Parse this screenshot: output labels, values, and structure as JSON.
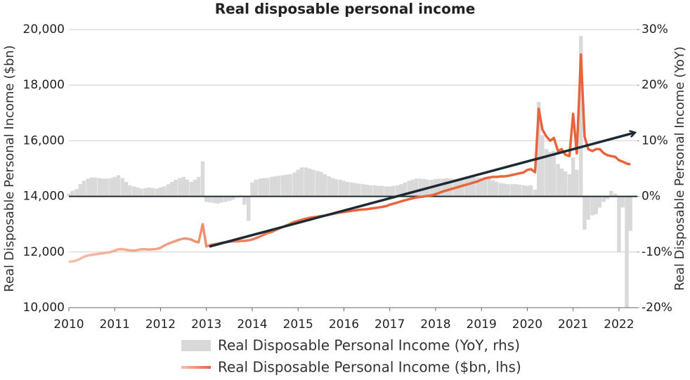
{
  "chart_data": {
    "type": "combo",
    "title": "Real disposable personal income",
    "y_label": "Real Disposable Personal Income ($bn)",
    "y2_label": "Real Disposable Personal Income (YoY)",
    "x": [
      2010.0,
      2010.08,
      2010.17,
      2010.25,
      2010.33,
      2010.42,
      2010.5,
      2010.58,
      2010.67,
      2010.75,
      2010.83,
      2010.92,
      2011.0,
      2011.08,
      2011.17,
      2011.25,
      2011.33,
      2011.42,
      2011.5,
      2011.58,
      2011.67,
      2011.75,
      2011.83,
      2011.92,
      2012.0,
      2012.08,
      2012.17,
      2012.25,
      2012.33,
      2012.42,
      2012.5,
      2012.58,
      2012.67,
      2012.75,
      2012.83,
      2012.92,
      2013.0,
      2013.08,
      2013.17,
      2013.25,
      2013.33,
      2013.42,
      2013.5,
      2013.58,
      2013.67,
      2013.75,
      2013.83,
      2013.92,
      2014.0,
      2014.08,
      2014.17,
      2014.25,
      2014.33,
      2014.42,
      2014.5,
      2014.58,
      2014.67,
      2014.75,
      2014.83,
      2014.92,
      2015.0,
      2015.08,
      2015.17,
      2015.25,
      2015.33,
      2015.42,
      2015.5,
      2015.58,
      2015.67,
      2015.75,
      2015.83,
      2015.92,
      2016.0,
      2016.08,
      2016.17,
      2016.25,
      2016.33,
      2016.42,
      2016.5,
      2016.58,
      2016.67,
      2016.75,
      2016.83,
      2016.92,
      2017.0,
      2017.08,
      2017.17,
      2017.25,
      2017.33,
      2017.42,
      2017.5,
      2017.58,
      2017.67,
      2017.75,
      2017.83,
      2017.92,
      2018.0,
      2018.08,
      2018.17,
      2018.25,
      2018.33,
      2018.42,
      2018.5,
      2018.58,
      2018.67,
      2018.75,
      2018.83,
      2018.92,
      2019.0,
      2019.08,
      2019.17,
      2019.25,
      2019.33,
      2019.42,
      2019.5,
      2019.58,
      2019.67,
      2019.75,
      2019.83,
      2019.92,
      2020.0,
      2020.08,
      2020.17,
      2020.25,
      2020.33,
      2020.42,
      2020.5,
      2020.58,
      2020.67,
      2020.75,
      2020.83,
      2020.92,
      2021.0,
      2021.08,
      2021.17,
      2021.25,
      2021.33,
      2021.42,
      2021.5,
      2021.58,
      2021.67,
      2021.75,
      2021.83,
      2021.92,
      2022.0,
      2022.08,
      2022.17,
      2022.25
    ],
    "series": [
      {
        "name": "Real Disposable Personal Income (YoY, rhs)",
        "type": "bar",
        "axis": "y2",
        "color": "#d9d9d9",
        "values": [
          0.5,
          1.0,
          1.3,
          2.2,
          2.8,
          3.2,
          3.4,
          3.4,
          3.3,
          3.2,
          3.2,
          3.3,
          3.5,
          3.8,
          3.3,
          2.6,
          2.0,
          1.8,
          1.6,
          1.4,
          1.5,
          1.6,
          1.5,
          1.4,
          1.6,
          1.8,
          2.2,
          2.6,
          3.0,
          3.3,
          3.5,
          3.0,
          2.6,
          3.0,
          3.5,
          6.3,
          -1.0,
          -1.1,
          -1.2,
          -1.3,
          -1.1,
          -1.0,
          -0.8,
          -0.6,
          -0.2,
          0.2,
          -1.5,
          -4.4,
          2.5,
          3.0,
          3.2,
          3.3,
          3.3,
          3.5,
          3.6,
          3.7,
          3.8,
          3.9,
          4.0,
          4.3,
          4.8,
          5.2,
          5.2,
          5.0,
          4.8,
          4.6,
          4.4,
          4.0,
          3.6,
          3.3,
          3.1,
          3.0,
          2.8,
          2.6,
          2.5,
          2.4,
          2.3,
          2.2,
          2.1,
          2.0,
          2.0,
          1.9,
          1.9,
          1.8,
          1.8,
          1.9,
          2.0,
          2.2,
          2.5,
          2.8,
          3.0,
          3.2,
          3.2,
          3.1,
          3.0,
          3.0,
          3.1,
          3.2,
          3.2,
          3.3,
          3.2,
          3.1,
          3.2,
          3.3,
          3.4,
          3.5,
          3.5,
          3.4,
          3.3,
          3.4,
          3.2,
          2.9,
          2.6,
          2.4,
          2.3,
          2.2,
          2.2,
          2.2,
          2.1,
          2.0,
          1.9,
          2.0,
          1.2,
          17.0,
          11.0,
          8.5,
          8.0,
          8.2,
          5.8,
          5.0,
          4.5,
          4.0,
          7.0,
          4.8,
          28.8,
          -6.0,
          -4.2,
          -3.4,
          -3.2,
          -2.0,
          -1.0,
          -0.5,
          1.0,
          0.5,
          -10.0,
          -2.0,
          -20.0,
          -6.2
        ]
      },
      {
        "name": "Real Disposable Personal Income ($bn, lhs)",
        "type": "line",
        "axis": "y",
        "color": "#e8643c",
        "color_start": "#f7bfaa",
        "values": [
          11650,
          11660,
          11700,
          11760,
          11830,
          11880,
          11900,
          11920,
          11940,
          11960,
          11980,
          12000,
          12050,
          12100,
          12100,
          12080,
          12060,
          12050,
          12070,
          12100,
          12100,
          12090,
          12100,
          12110,
          12150,
          12230,
          12300,
          12350,
          12400,
          12450,
          12480,
          12480,
          12450,
          12380,
          12350,
          13000,
          12200,
          12250,
          12280,
          12300,
          12330,
          12350,
          12370,
          12380,
          12380,
          12400,
          12400,
          12420,
          12450,
          12500,
          12560,
          12620,
          12680,
          12720,
          12780,
          12840,
          12900,
          12960,
          13020,
          13080,
          13120,
          13160,
          13200,
          13230,
          13250,
          13270,
          13290,
          13310,
          13340,
          13370,
          13400,
          13420,
          13440,
          13460,
          13480,
          13500,
          13520,
          13530,
          13540,
          13560,
          13580,
          13600,
          13620,
          13650,
          13700,
          13740,
          13780,
          13820,
          13860,
          13900,
          13930,
          13960,
          13980,
          14000,
          14020,
          14040,
          14080,
          14130,
          14180,
          14220,
          14260,
          14300,
          14340,
          14380,
          14420,
          14460,
          14500,
          14540,
          14600,
          14650,
          14680,
          14700,
          14700,
          14720,
          14720,
          14740,
          14770,
          14800,
          14830,
          14860,
          14950,
          14980,
          14870,
          17150,
          16400,
          16150,
          16000,
          16100,
          15630,
          15700,
          15500,
          15450,
          16970,
          15550,
          19100,
          16150,
          15700,
          15630,
          15700,
          15700,
          15550,
          15480,
          15450,
          15420,
          15300,
          15250,
          15180,
          15150
        ]
      }
    ],
    "xlim": [
      2010,
      2022.4
    ],
    "xticks": [
      2010,
      2011,
      2012,
      2013,
      2014,
      2015,
      2016,
      2017,
      2018,
      2019,
      2020,
      2021,
      2022
    ],
    "ylim": [
      10000,
      20000
    ],
    "yticks": [
      {
        "value": 10000,
        "label": "10,000"
      },
      {
        "value": 12000,
        "label": "12,000"
      },
      {
        "value": 14000,
        "label": "14,000"
      },
      {
        "value": 16000,
        "label": "16,000"
      },
      {
        "value": 18000,
        "label": "18,000"
      },
      {
        "value": 20000,
        "label": "20,000"
      }
    ],
    "y2lim": [
      -20,
      30
    ],
    "y2ticks": [
      {
        "value": -20,
        "label": "-20%"
      },
      {
        "value": -10,
        "label": "-10%"
      },
      {
        "value": 0,
        "label": "0%"
      },
      {
        "value": 10,
        "label": "10%"
      },
      {
        "value": 20,
        "label": "20%"
      },
      {
        "value": 30,
        "label": "30%"
      }
    ],
    "grid": true
  }
}
